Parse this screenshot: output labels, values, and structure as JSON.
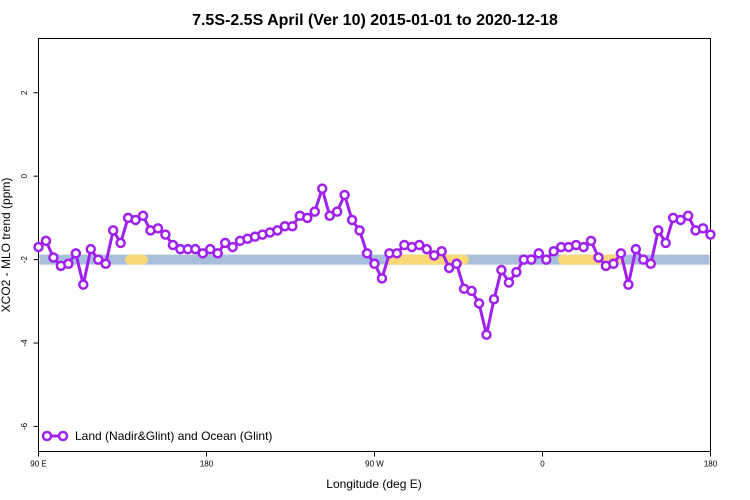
{
  "chart_data": {
    "type": "line",
    "title": "7.5S-2.5S April (Ver 10)   2015-01-01 to 2020-12-18",
    "xlabel": "Longitude (deg E)",
    "ylabel": "XCO2 - MLO trend (ppm)",
    "xlim": [
      90,
      450
    ],
    "ylim": [
      -6.6,
      3.3
    ],
    "x_ticks": [
      {
        "value": 90,
        "label": "90 E"
      },
      {
        "value": 180,
        "label": "180"
      },
      {
        "value": 270,
        "label": "90 W"
      },
      {
        "value": 360,
        "label": "0"
      },
      {
        "value": 450,
        "label": "180"
      }
    ],
    "y_ticks": [
      {
        "value": 2,
        "label": "2"
      },
      {
        "value": 0,
        "label": "0"
      },
      {
        "value": -2,
        "label": "-2"
      },
      {
        "value": -4,
        "label": "-4"
      },
      {
        "value": -6,
        "label": "-6"
      }
    ],
    "grid": false,
    "legend": {
      "position": "bottom-left",
      "label": "Land (Nadir&Glint) and Ocean (Glint)"
    },
    "surface_band": {
      "y": -2,
      "ocean_color": "#a8bfdc",
      "land_color": "#fad878",
      "land_segments": [
        [
          139,
          146
        ],
        [
          279,
          318
        ],
        [
          371,
          400
        ],
        [
          497,
          502
        ],
        [
          512,
          516
        ],
        [
          549,
          554
        ]
      ]
    },
    "series": [
      {
        "name": "Land (Nadir&Glint) and Ocean (Glint)",
        "color": "#a020f0",
        "x": [
          90,
          94,
          98,
          102,
          106,
          110,
          114,
          118,
          122,
          126,
          130,
          134,
          138,
          142,
          146,
          150,
          154,
          158,
          162,
          166,
          170,
          174,
          178,
          182,
          186,
          190,
          194,
          198,
          202,
          206,
          210,
          214,
          218,
          222,
          226,
          230,
          234,
          238,
          242,
          246,
          250,
          254,
          258,
          262,
          266,
          270,
          274,
          278,
          282,
          286,
          290,
          294,
          298,
          302,
          306,
          310,
          314,
          318,
          322,
          326,
          330,
          334,
          338,
          342,
          346,
          350,
          354,
          358,
          362,
          366,
          370,
          374,
          378,
          382,
          386,
          390,
          394,
          398,
          402,
          406,
          410,
          414,
          418,
          422,
          426,
          430,
          434,
          438,
          442,
          446,
          450
        ],
        "y": [
          -1.7,
          -1.55,
          -1.95,
          -2.15,
          -2.1,
          -1.85,
          -2.6,
          -1.75,
          -2.0,
          -2.1,
          -1.3,
          -1.6,
          -1.0,
          -1.05,
          -0.95,
          -1.3,
          -1.25,
          -1.4,
          -1.65,
          -1.75,
          -1.75,
          -1.75,
          -1.85,
          -1.75,
          -1.85,
          -1.6,
          -1.7,
          -1.55,
          -1.5,
          -1.45,
          -1.4,
          -1.35,
          -1.3,
          -1.2,
          -1.2,
          -0.95,
          -1.0,
          -0.85,
          -0.3,
          -0.95,
          -0.85,
          -0.45,
          -1.05,
          -1.3,
          -1.85,
          -2.1,
          -2.45,
          -1.85,
          -1.85,
          -1.65,
          -1.7,
          -1.65,
          -1.75,
          -1.9,
          -1.8,
          -2.2,
          -2.1,
          -2.7,
          -2.75,
          -3.05,
          -3.8,
          -2.95,
          -2.25,
          -2.55,
          -2.3,
          -2.0,
          -2.0,
          -1.85,
          -2.0,
          -1.8,
          -1.7,
          -1.7,
          -1.65,
          -1.7,
          -1.55,
          -1.95,
          -2.15,
          -2.1,
          -1.85,
          -2.6,
          -1.75,
          -2.0,
          -2.1,
          -1.3,
          -1.6,
          -1.0,
          -1.05,
          -0.95,
          -1.3,
          -1.25,
          -1.4
        ]
      }
    ]
  }
}
